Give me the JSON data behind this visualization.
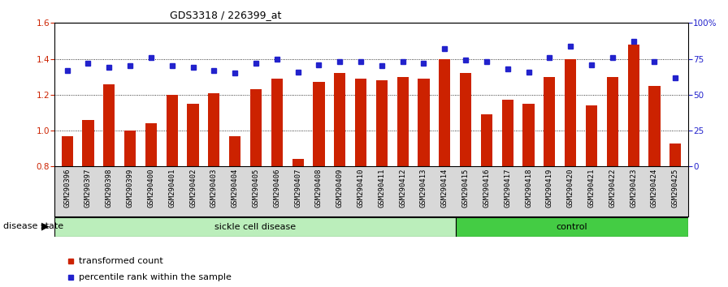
{
  "title": "GDS3318 / 226399_at",
  "samples": [
    "GSM290396",
    "GSM290397",
    "GSM290398",
    "GSM290399",
    "GSM290400",
    "GSM290401",
    "GSM290402",
    "GSM290403",
    "GSM290404",
    "GSM290405",
    "GSM290406",
    "GSM290407",
    "GSM290408",
    "GSM290409",
    "GSM290410",
    "GSM290411",
    "GSM290412",
    "GSM290413",
    "GSM290414",
    "GSM290415",
    "GSM290416",
    "GSM290417",
    "GSM290418",
    "GSM290419",
    "GSM290420",
    "GSM290421",
    "GSM290422",
    "GSM290423",
    "GSM290424",
    "GSM290425"
  ],
  "bar_values": [
    0.97,
    1.06,
    1.26,
    1.0,
    1.04,
    1.2,
    1.15,
    1.21,
    0.97,
    1.23,
    1.29,
    0.84,
    1.27,
    1.32,
    1.29,
    1.28,
    1.3,
    1.29,
    1.4,
    1.32,
    1.09,
    1.17,
    1.15,
    1.3,
    1.4,
    1.14,
    1.3,
    1.48,
    1.25,
    0.93
  ],
  "dot_values": [
    67,
    72,
    69,
    70,
    76,
    70,
    69,
    67,
    65,
    72,
    75,
    66,
    71,
    73,
    73,
    70,
    73,
    72,
    82,
    74,
    73,
    68,
    66,
    76,
    84,
    71,
    76,
    87,
    73,
    62
  ],
  "sickle_count": 19,
  "control_count": 11,
  "bar_color": "#cc2200",
  "dot_color": "#2222cc",
  "sickle_color": "#bbeebb",
  "control_color": "#44cc44",
  "ylim_left": [
    0.8,
    1.6
  ],
  "ylim_right": [
    0,
    100
  ],
  "yticks_left": [
    0.8,
    1.0,
    1.2,
    1.4,
    1.6
  ],
  "yticks_right": [
    0,
    25,
    50,
    75,
    100
  ],
  "ytick_labels_right": [
    "0",
    "25",
    "50",
    "75",
    "100%"
  ],
  "grid_lines": [
    1.0,
    1.2,
    1.4
  ],
  "title_fontsize": 9,
  "tick_fontsize": 7.5,
  "xlabel_fontsize": 6.5
}
